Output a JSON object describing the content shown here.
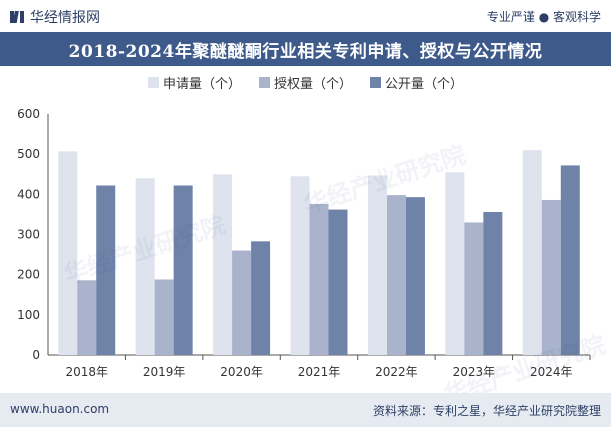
{
  "header": {
    "brand": "华经情报网",
    "slogan": "专业严谨 ● 客观科学"
  },
  "chart_data": {
    "type": "bar",
    "title": "2018-2024年聚醚醚酮行业相关专利申请、授权与公开情况",
    "categories": [
      "2018年",
      "2019年",
      "2020年",
      "2021年",
      "2022年",
      "2023年",
      "2024年"
    ],
    "series": [
      {
        "name": "申请量（个）",
        "color": "#dfe3ee",
        "values": [
          507,
          440,
          450,
          445,
          447,
          455,
          510
        ]
      },
      {
        "name": "授权量（个）",
        "color": "#a9b4cc",
        "values": [
          186,
          188,
          260,
          376,
          398,
          330,
          386
        ]
      },
      {
        "name": "公开量（个）",
        "color": "#6f82a8",
        "values": [
          422,
          422,
          283,
          362,
          393,
          356,
          472
        ]
      }
    ],
    "ylim": [
      0,
      600
    ],
    "yticks": [
      0,
      100,
      200,
      300,
      400,
      500,
      600
    ],
    "ytick_labels": [
      "0",
      "100",
      "200",
      "300",
      "400",
      "500",
      "600"
    ],
    "legend_position": "top-center"
  },
  "footer": {
    "site": "www.huaon.com",
    "source": "资料来源：专利之星，华经产业研究院整理"
  },
  "watermark": "华经产业研究院"
}
